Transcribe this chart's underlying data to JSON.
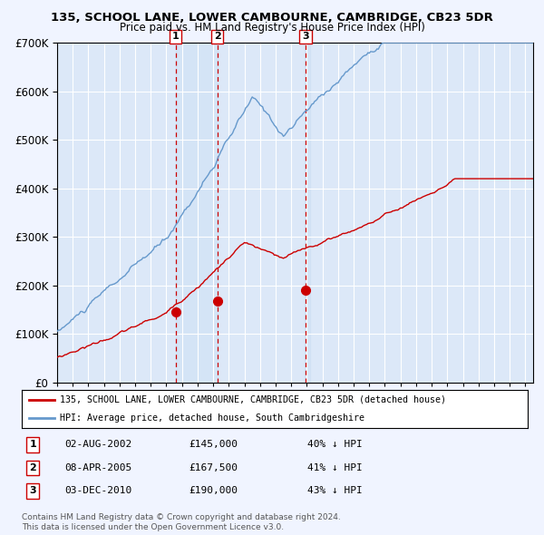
{
  "title1": "135, SCHOOL LANE, LOWER CAMBOURNE, CAMBRIDGE, CB23 5DR",
  "title2": "Price paid vs. HM Land Registry's House Price Index (HPI)",
  "legend_red": "135, SCHOOL LANE, LOWER CAMBOURNE, CAMBRIDGE, CB23 5DR (detached house)",
  "legend_blue": "HPI: Average price, detached house, South Cambridgeshire",
  "transactions": [
    {
      "num": 1,
      "date": "02-AUG-2002",
      "price": 145000,
      "pct": "40%",
      "dir": "↓"
    },
    {
      "num": 2,
      "date": "08-APR-2005",
      "price": 167500,
      "pct": "41%",
      "dir": "↓"
    },
    {
      "num": 3,
      "date": "03-DEC-2010",
      "price": 190000,
      "pct": "43%",
      "dir": "↓"
    }
  ],
  "vline_dates": [
    2002.583,
    2005.271,
    2010.917
  ],
  "copyright": "Contains HM Land Registry data © Crown copyright and database right 2024.\nThis data is licensed under the Open Government Licence v3.0.",
  "ylim": [
    0,
    700000
  ],
  "xlim": [
    1995.0,
    2025.5
  ],
  "background_color": "#f0f4ff",
  "plot_bg": "#dce8f8",
  "red_color": "#cc0000",
  "blue_color": "#6699cc",
  "grid_color": "#ffffff"
}
